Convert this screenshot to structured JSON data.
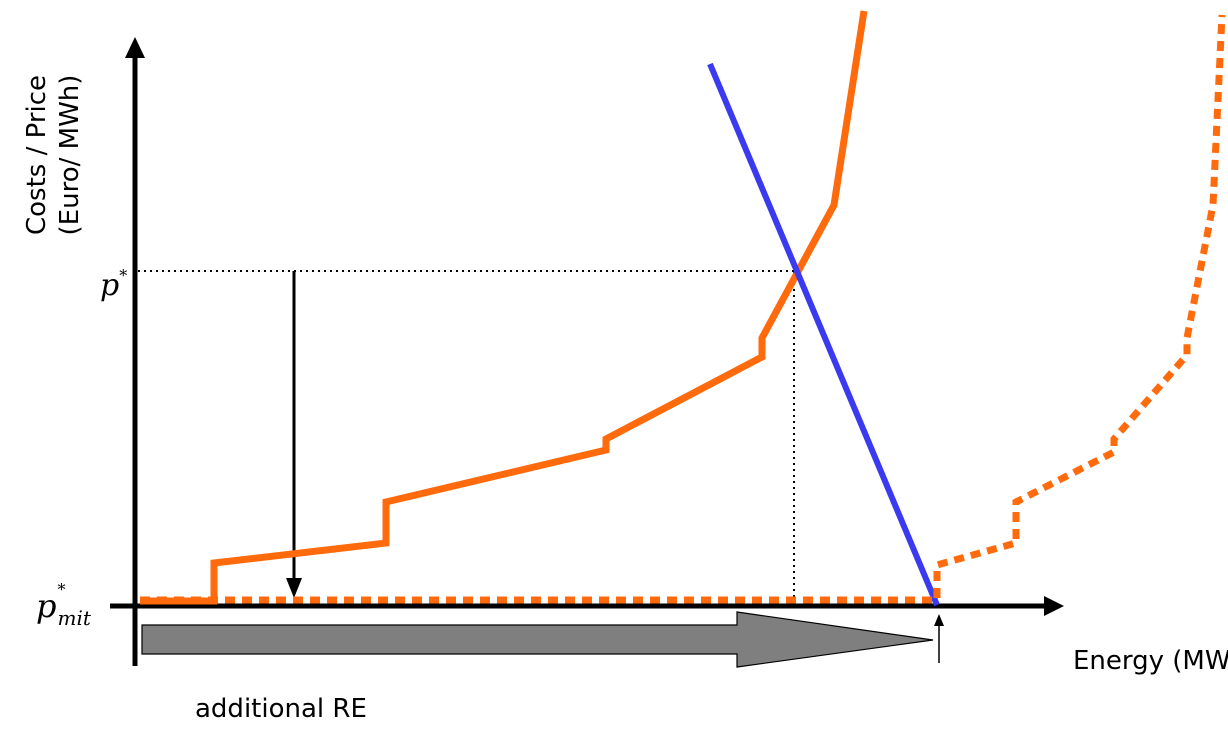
{
  "y_axis_label_line1": "Costs / Price",
  "y_axis_label_line2": "(Euro/ MWh)",
  "x_axis_label": "Energy (MWH)",
  "arrow_label": "additional RE",
  "p_star": {
    "base": "p",
    "sup": "*"
  },
  "p_mit_star": {
    "base": "p",
    "sup": "*",
    "sub": "mit"
  },
  "colors": {
    "supply": "#FF6A0D",
    "demand": "#3A3AF0",
    "axis": "#000000",
    "shift_arrow_fill": "#7F7F7F"
  }
}
